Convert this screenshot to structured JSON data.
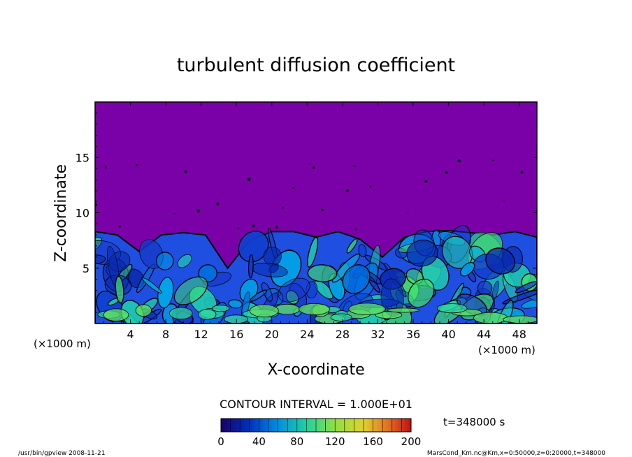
{
  "chart_data": {
    "type": "heatmap",
    "title": "turbulent diffusion coefficient",
    "xlabel": "X-coordinate",
    "ylabel": "Z-coordinate",
    "x_unit": "(×1000 m)",
    "x_unit_right": "(×1000 m)",
    "xlim": [
      0,
      50
    ],
    "ylim": [
      0,
      20
    ],
    "x_ticks": [
      4,
      8,
      12,
      16,
      20,
      24,
      28,
      32,
      36,
      40,
      44,
      48
    ],
    "y_ticks": [
      5,
      10,
      15
    ],
    "contour_interval": "CONTOUR INTERVAL = 1.000E+01",
    "colorbar": {
      "min": 0,
      "max": 200,
      "ticks": [
        0,
        40,
        80,
        120,
        160,
        200
      ]
    },
    "time_label": "t=348000  s",
    "background_color": "#7a00a8",
    "boundary_layer_top_approx_km": [
      8.3,
      8.0,
      6.5,
      8.0,
      8.2,
      8.0,
      5.0,
      7.5,
      8.3,
      8.3,
      7.8,
      8.3,
      7.6,
      6.0,
      7.8,
      8.3,
      8.4,
      8.2,
      8.0,
      8.3,
      7.8
    ]
  },
  "footer": {
    "left": "/usr/bin/gpview   2008-11-21",
    "right": "MarsCond_Km.nc@Km,x=0:50000,z=0:20000,t=348000"
  }
}
